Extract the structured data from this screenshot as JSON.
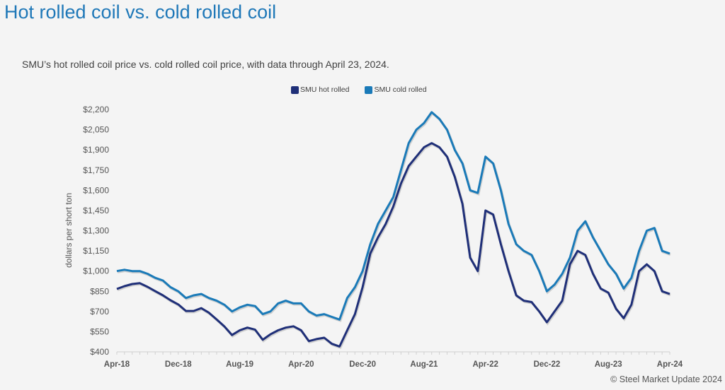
{
  "title": "Hot rolled coil vs. cold rolled coil",
  "subtitle": "SMU’s hot rolled coil price vs. cold rolled coil price, with data through April 23, 2024.",
  "credit": "© Steel Market Update 2024",
  "chart_data": {
    "type": "line",
    "title": "",
    "xlabel": "",
    "ylabel": "dollars per short ton",
    "ylim": [
      400,
      2200
    ],
    "yticks": [
      "$400",
      "$550",
      "$700",
      "$850",
      "$1,000",
      "$1,150",
      "$1,300",
      "$1,450",
      "$1,600",
      "$1,750",
      "$1,900",
      "$2,050",
      "$2,200"
    ],
    "ytick_values": [
      400,
      550,
      700,
      850,
      1000,
      1150,
      1300,
      1450,
      1600,
      1750,
      1900,
      2050,
      2200
    ],
    "x_start": "Apr-18",
    "x_end": "Apr-24",
    "xticks": [
      "Apr-18",
      "Dec-18",
      "Aug-19",
      "Apr-20",
      "Dec-20",
      "Aug-21",
      "Apr-22",
      "Dec-22",
      "Aug-23",
      "Apr-24"
    ],
    "grid": false,
    "legend_position": "top",
    "series": [
      {
        "name": "SMU hot rolled",
        "color": "#1f2f78",
        "values": [
          867,
          888,
          904,
          910,
          883,
          851,
          820,
          783,
          752,
          704,
          704,
          725,
          690,
          641,
          589,
          525,
          560,
          580,
          565,
          490,
          530,
          560,
          580,
          590,
          560,
          480,
          495,
          505,
          460,
          440,
          560,
          680,
          880,
          1130,
          1250,
          1350,
          1480,
          1650,
          1780,
          1850,
          1920,
          1950,
          1920,
          1850,
          1700,
          1500,
          1100,
          1000,
          1450,
          1420,
          1200,
          1000,
          820,
          780,
          770,
          700,
          620,
          700,
          780,
          1050,
          1150,
          1120,
          980,
          870,
          840,
          720,
          650,
          750,
          1000,
          1050,
          1000,
          850,
          830
        ]
      },
      {
        "name": "SMU cold rolled",
        "color": "#1a7ab8",
        "values": [
          1000,
          1010,
          1000,
          1000,
          980,
          950,
          930,
          880,
          850,
          800,
          820,
          830,
          800,
          780,
          750,
          700,
          730,
          750,
          740,
          680,
          700,
          760,
          780,
          760,
          760,
          700,
          670,
          680,
          660,
          640,
          800,
          880,
          1000,
          1200,
          1350,
          1450,
          1550,
          1750,
          1950,
          2050,
          2100,
          2180,
          2130,
          2050,
          1900,
          1800,
          1600,
          1580,
          1850,
          1800,
          1600,
          1350,
          1200,
          1150,
          1120,
          1000,
          850,
          900,
          980,
          1100,
          1300,
          1370,
          1250,
          1150,
          1050,
          980,
          870,
          950,
          1150,
          1300,
          1320,
          1150,
          1130
        ]
      }
    ]
  }
}
